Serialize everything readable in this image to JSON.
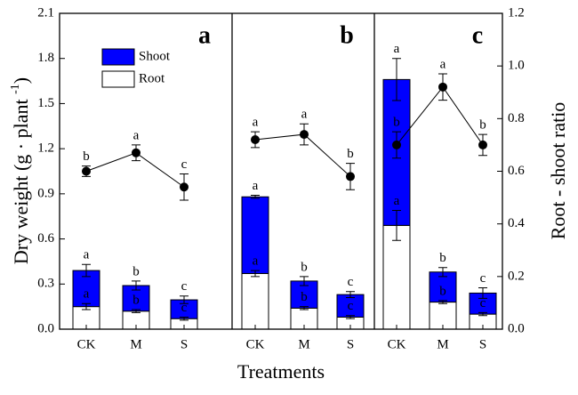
{
  "chart_data": {
    "type": "combo",
    "xlabel": "Treatments",
    "ylabel": [
      "Dry weight (g · plant ",
      "-1",
      ")"
    ],
    "y2label": "Root - shoot ratio",
    "categories": [
      "CK",
      "M",
      "S"
    ],
    "ylim": [
      0,
      2.1
    ],
    "yticks": [
      {
        "value": 0,
        "label": "0.0"
      },
      0.3,
      0.6,
      0.9,
      1.2,
      1.5,
      1.8,
      2.1
    ],
    "y2lim": [
      0,
      1.2
    ],
    "y2ticks": [
      {
        "value": 0,
        "label": "0.0"
      },
      0.2,
      0.4,
      0.6,
      0.8,
      {
        "value": 1,
        "label": "1.0"
      },
      1.2
    ],
    "series": [
      {
        "name": "Shoot",
        "color": "#0000ff"
      },
      {
        "name": "Root",
        "color": "#ffffff"
      }
    ],
    "ratio_color": "#000000",
    "panels": [
      {
        "label": "a",
        "root": {
          "values": [
            0.15,
            0.12,
            0.07
          ],
          "errors": [
            0.02,
            0.01,
            0.01
          ],
          "letters": [
            "a",
            "b",
            "c"
          ]
        },
        "shoot": {
          "values": [
            0.24,
            0.17,
            0.125
          ],
          "errors": [
            0.04,
            0.03,
            0.025
          ],
          "letters": [
            "a",
            "b",
            "c"
          ]
        },
        "ratio": {
          "values": [
            0.6,
            0.67,
            0.54
          ],
          "errors": [
            0.02,
            0.03,
            0.05
          ],
          "letters": [
            "b",
            "a",
            "c"
          ]
        }
      },
      {
        "label": "b",
        "root": {
          "values": [
            0.37,
            0.14,
            0.08
          ],
          "errors": [
            0.02,
            0.01,
            0.01
          ],
          "letters": [
            "a",
            "b",
            "c"
          ]
        },
        "shoot": {
          "values": [
            0.51,
            0.18,
            0.15
          ],
          "errors": [
            0.01,
            0.03,
            0.02
          ],
          "letters": [
            "a",
            "b",
            "c"
          ]
        },
        "ratio": {
          "values": [
            0.72,
            0.74,
            0.58
          ],
          "errors": [
            0.03,
            0.04,
            0.05
          ],
          "letters": [
            "a",
            "a",
            "b"
          ]
        }
      },
      {
        "label": "c",
        "root": {
          "values": [
            0.69,
            0.18,
            0.1
          ],
          "errors": [
            0.1,
            0.01,
            0.01
          ],
          "letters": [
            "a",
            "b",
            "c"
          ]
        },
        "shoot": {
          "values": [
            0.97,
            0.2,
            0.14
          ],
          "errors": [
            0.14,
            0.03,
            0.035
          ],
          "letters": [
            "a",
            "b",
            "c"
          ]
        },
        "ratio": {
          "values": [
            0.7,
            0.92,
            0.7
          ],
          "errors": [
            0.05,
            0.05,
            0.04
          ],
          "letters": [
            "b",
            "a",
            "b"
          ]
        }
      }
    ]
  }
}
